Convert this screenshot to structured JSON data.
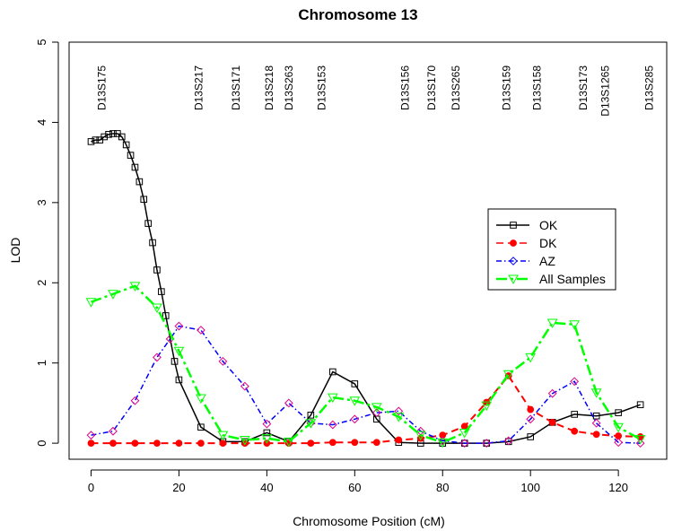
{
  "chart_data": {
    "type": "line",
    "title": "Chromosome 13",
    "xlabel": "Chromosome Position (cM)",
    "ylabel": "LOD",
    "xlim": [
      -5,
      131
    ],
    "ylim": [
      -0.2,
      5.0
    ],
    "xticks": [
      0,
      20,
      40,
      60,
      80,
      100,
      120
    ],
    "yticks": [
      0,
      1,
      2,
      3,
      4,
      5
    ],
    "grid": false,
    "legend_position": "right",
    "markers": [
      {
        "label": "D13S175",
        "x": 2.5
      },
      {
        "label": "D13S217",
        "x": 24.5
      },
      {
        "label": "D13S171",
        "x": 33
      },
      {
        "label": "D13S218",
        "x": 40.5
      },
      {
        "label": "D13S263",
        "x": 45
      },
      {
        "label": "D13S153",
        "x": 52.5
      },
      {
        "label": "D13S156",
        "x": 71.5
      },
      {
        "label": "D13S170",
        "x": 77.5
      },
      {
        "label": "D13S265",
        "x": 83
      },
      {
        "label": "D13S159",
        "x": 94.5
      },
      {
        "label": "D13S158",
        "x": 101.5
      },
      {
        "label": "D13S173",
        "x": 112
      },
      {
        "label": "D13S1265",
        "x": 117
      },
      {
        "label": "D13S285",
        "x": 127
      }
    ],
    "series": [
      {
        "name": "OK",
        "color": "#000000",
        "dash": "",
        "marker": "square",
        "points": [
          [
            0,
            3.76
          ],
          [
            1,
            3.78
          ],
          [
            2,
            3.78
          ],
          [
            3,
            3.82
          ],
          [
            4,
            3.85
          ],
          [
            5,
            3.86
          ],
          [
            6,
            3.86
          ],
          [
            7,
            3.82
          ],
          [
            8,
            3.72
          ],
          [
            9,
            3.59
          ],
          [
            10,
            3.44
          ],
          [
            11,
            3.26
          ],
          [
            12,
            3.04
          ],
          [
            13,
            2.74
          ],
          [
            14,
            2.5
          ],
          [
            15,
            2.16
          ],
          [
            16,
            1.89
          ],
          [
            17,
            1.59
          ],
          [
            19,
            1.02
          ],
          [
            20,
            0.79
          ],
          [
            25,
            0.2
          ],
          [
            30,
            0.02
          ],
          [
            35,
            0.02
          ],
          [
            40,
            0.13
          ],
          [
            45,
            0.02
          ],
          [
            50,
            0.35
          ],
          [
            55,
            0.89
          ],
          [
            60,
            0.74
          ],
          [
            65,
            0.3
          ],
          [
            70,
            0.01
          ],
          [
            75,
            0.0
          ],
          [
            80,
            0.0
          ],
          [
            85,
            0.0
          ],
          [
            90,
            0.0
          ],
          [
            95,
            0.02
          ],
          [
            100,
            0.08
          ],
          [
            105,
            0.26
          ],
          [
            110,
            0.36
          ],
          [
            115,
            0.34
          ],
          [
            120,
            0.38
          ],
          [
            125,
            0.48
          ]
        ]
      },
      {
        "name": "DK",
        "color": "#ff0000",
        "dash": "8,5",
        "marker": "circle",
        "points": [
          [
            0,
            0.0
          ],
          [
            5,
            0.0
          ],
          [
            10,
            0.0
          ],
          [
            15,
            0.0
          ],
          [
            20,
            0.0
          ],
          [
            25,
            0.0
          ],
          [
            30,
            0.0
          ],
          [
            35,
            0.0
          ],
          [
            40,
            0.0
          ],
          [
            45,
            0.0
          ],
          [
            50,
            0.0
          ],
          [
            55,
            0.01
          ],
          [
            60,
            0.01
          ],
          [
            65,
            0.01
          ],
          [
            70,
            0.04
          ],
          [
            75,
            0.06
          ],
          [
            80,
            0.1
          ],
          [
            85,
            0.21
          ],
          [
            90,
            0.51
          ],
          [
            95,
            0.84
          ],
          [
            100,
            0.42
          ],
          [
            105,
            0.26
          ],
          [
            110,
            0.15
          ],
          [
            115,
            0.11
          ],
          [
            120,
            0.09
          ],
          [
            125,
            0.08
          ]
        ]
      },
      {
        "name": "AZ",
        "color": "#0000ff",
        "dash": "6,3,1.5,3",
        "marker": "diamond",
        "points": [
          [
            0,
            0.1
          ],
          [
            5,
            0.15
          ],
          [
            10,
            0.53
          ],
          [
            15,
            1.07
          ],
          [
            18,
            1.3
          ],
          [
            20,
            1.46
          ],
          [
            25,
            1.41
          ],
          [
            30,
            1.02
          ],
          [
            35,
            0.71
          ],
          [
            40,
            0.24
          ],
          [
            45,
            0.5
          ],
          [
            50,
            0.25
          ],
          [
            55,
            0.23
          ],
          [
            60,
            0.3
          ],
          [
            65,
            0.38
          ],
          [
            70,
            0.4
          ],
          [
            75,
            0.15
          ],
          [
            80,
            0.03
          ],
          [
            85,
            0.0
          ],
          [
            90,
            0.0
          ],
          [
            95,
            0.03
          ],
          [
            100,
            0.3
          ],
          [
            105,
            0.62
          ],
          [
            110,
            0.77
          ],
          [
            115,
            0.25
          ],
          [
            120,
            0.01
          ],
          [
            125,
            0.0
          ]
        ]
      },
      {
        "name": "All Samples",
        "color": "#00ff00",
        "dash": "12,4,3,4",
        "marker": "triangle-down",
        "points": [
          [
            0,
            1.76
          ],
          [
            5,
            1.86
          ],
          [
            10,
            1.96
          ],
          [
            15,
            1.69
          ],
          [
            20,
            1.15
          ],
          [
            25,
            0.56
          ],
          [
            30,
            0.1
          ],
          [
            35,
            0.04
          ],
          [
            40,
            0.06
          ],
          [
            45,
            0.02
          ],
          [
            50,
            0.25
          ],
          [
            55,
            0.57
          ],
          [
            60,
            0.53
          ],
          [
            65,
            0.45
          ],
          [
            70,
            0.33
          ],
          [
            75,
            0.1
          ],
          [
            80,
            0.01
          ],
          [
            85,
            0.13
          ],
          [
            90,
            0.47
          ],
          [
            95,
            0.86
          ],
          [
            100,
            1.07
          ],
          [
            105,
            1.5
          ],
          [
            110,
            1.48
          ],
          [
            115,
            0.63
          ],
          [
            120,
            0.2
          ],
          [
            125,
            0.05
          ]
        ]
      }
    ]
  }
}
